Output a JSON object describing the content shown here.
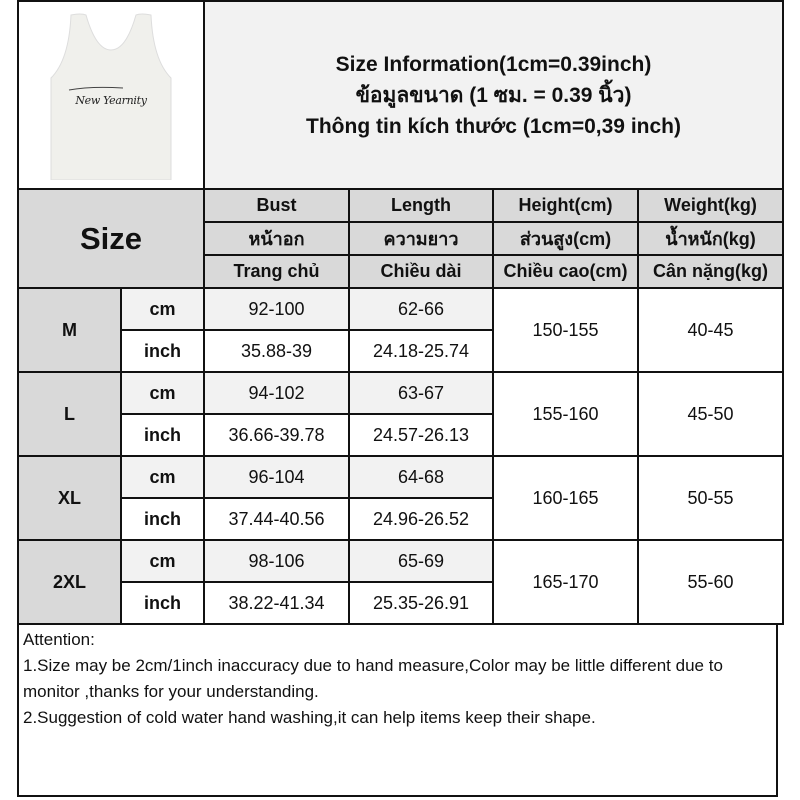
{
  "title": {
    "line1": "Size Information(1cm=0.39inch)",
    "line2": "ข้อมูลขนาด (1 ซม. = 0.39 นิ้ว)",
    "line3": "Thông tin kích thước (1cm=0,39 inch)"
  },
  "shirt_print": "New Yearnity",
  "header": {
    "size": "Size",
    "columns": [
      {
        "en": "Bust",
        "th": "หน้าอก",
        "vi": "Trang chủ"
      },
      {
        "en": "Length",
        "th": "ความยาว",
        "vi": "Chiều dài"
      },
      {
        "en": "Height(cm)",
        "th": "ส่วนสูง(cm)",
        "vi": "Chiều cao(cm)"
      },
      {
        "en": "Weight(kg)",
        "th": "น้ำหนัก(kg)",
        "vi": "Cân nặng(kg)"
      }
    ]
  },
  "units": {
    "cm": "cm",
    "inch": "inch"
  },
  "rows": [
    {
      "size": "M",
      "bust_cm": "92-100",
      "length_cm": "62-66",
      "bust_in": "35.88-39",
      "length_in": "24.18-25.74",
      "height": "150-155",
      "weight": "40-45"
    },
    {
      "size": "L",
      "bust_cm": "94-102",
      "length_cm": "63-67",
      "bust_in": "36.66-39.78",
      "length_in": "24.57-26.13",
      "height": "155-160",
      "weight": "45-50"
    },
    {
      "size": "XL",
      "bust_cm": "96-104",
      "length_cm": "64-68",
      "bust_in": "37.44-40.56",
      "length_in": "24.96-26.52",
      "height": "160-165",
      "weight": "50-55"
    },
    {
      "size": "2XL",
      "bust_cm": "98-106",
      "length_cm": "65-69",
      "bust_in": "38.22-41.34",
      "length_in": "25.35-26.91",
      "height": "165-170",
      "weight": "55-60"
    }
  ],
  "attention": {
    "heading": "Attention:",
    "note1": "1.Size may be 2cm/1inch inaccuracy due to hand measure,Color may be little different due to monitor ,thanks for your understanding.",
    "note2": "2.Suggestion of cold water hand washing,it can help items keep their shape."
  }
}
